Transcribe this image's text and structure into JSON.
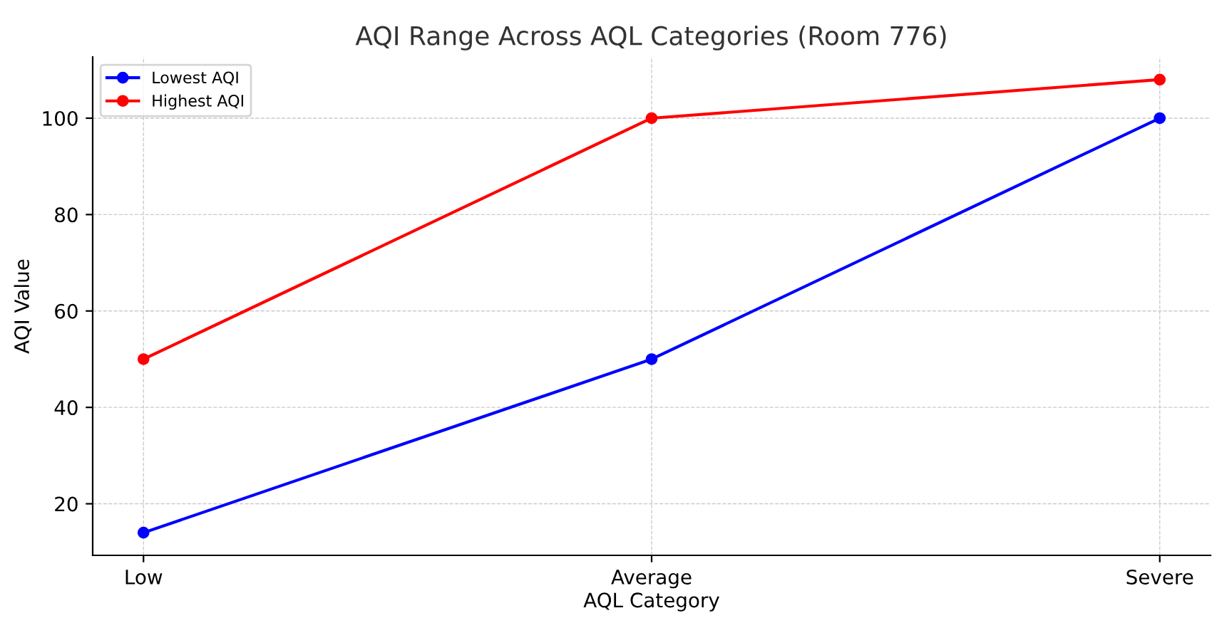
{
  "chart_data": {
    "type": "line",
    "title": "AQI Range Across AQL Categories (Room 776)",
    "xlabel": "AQL Category",
    "ylabel": "AQI Value",
    "categories": [
      "Low",
      "Average",
      "Severe"
    ],
    "series": [
      {
        "name": "Lowest AQI",
        "color": "#0000ff",
        "values": [
          14,
          50,
          100
        ]
      },
      {
        "name": "Highest AQI",
        "color": "#ff0000",
        "values": [
          50,
          100,
          108
        ]
      }
    ],
    "ylim": [
      9.3,
      112.7
    ],
    "yticks": [
      20,
      40,
      60,
      80,
      100
    ],
    "grid": true,
    "legend": "top left",
    "marker": "circle",
    "line_style": "solid"
  }
}
